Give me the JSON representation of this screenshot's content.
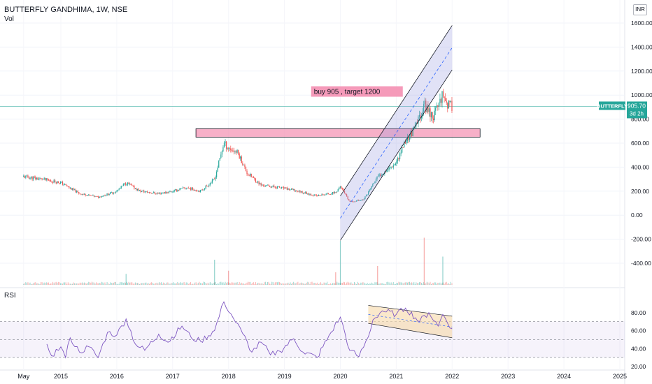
{
  "header": {
    "symbol_title": "BUTTERFLY GANDHIMA, 1W, NSE",
    "volume_label": "Vol",
    "currency": "INR"
  },
  "price_tag": {
    "symbol": "BUTTERFLY",
    "price": "905.70",
    "countdown": "3d 2h"
  },
  "annotation_text": "buy 905 , target 1200",
  "rsi_label": "RSI",
  "colors": {
    "up": "#26a69a",
    "down": "#ef5350",
    "rsi_line": "#7e57c2",
    "channel": "#9598e0",
    "annotation_bg": "#f48fb1",
    "tag_bg": "#26a69a",
    "rsi_channel": "#f7d9a8"
  },
  "chart_data": [
    {
      "type": "candlestick",
      "title": "BUTTERFLY GANDHIMA, 1W, NSE",
      "x_ticks": [
        "May",
        "2015",
        "2016",
        "2017",
        "2018",
        "2019",
        "2020",
        "2021",
        "2022",
        "2023",
        "2024",
        "2025"
      ],
      "y_ticks": [
        "1600.00",
        "1400.00",
        "1200.00",
        "1000.00",
        "800.00",
        "600.00",
        "400.00",
        "200.00",
        "0.00",
        "-200.00",
        "-400.00"
      ],
      "ylim": [
        -400,
        1600
      ],
      "last_price": 905.7,
      "price_path": [
        [
          "2014-05",
          320
        ],
        [
          "2014-09",
          300
        ],
        [
          "2015-01",
          270
        ],
        [
          "2015-05",
          180
        ],
        [
          "2015-09",
          150
        ],
        [
          "2016-01",
          200
        ],
        [
          "2016-03",
          270
        ],
        [
          "2016-06",
          200
        ],
        [
          "2016-10",
          180
        ],
        [
          "2017-01",
          200
        ],
        [
          "2017-04",
          230
        ],
        [
          "2017-07",
          200
        ],
        [
          "2017-10",
          300
        ],
        [
          "2017-12",
          600
        ],
        [
          "2018-01",
          560
        ],
        [
          "2018-03",
          520
        ],
        [
          "2018-05",
          350
        ],
        [
          "2018-08",
          250
        ],
        [
          "2018-12",
          230
        ],
        [
          "2019-04",
          200
        ],
        [
          "2019-08",
          160
        ],
        [
          "2019-12",
          190
        ],
        [
          "2020-01",
          240
        ],
        [
          "2020-03",
          110
        ],
        [
          "2020-06",
          130
        ],
        [
          "2020-09",
          320
        ],
        [
          "2021-01",
          440
        ],
        [
          "2021-03",
          620
        ],
        [
          "2021-05",
          720
        ],
        [
          "2021-07",
          920
        ],
        [
          "2021-09",
          820
        ],
        [
          "2021-11",
          1020
        ],
        [
          "2021-12",
          920
        ],
        [
          "2022-01",
          905.7
        ]
      ],
      "volume_spikes": [
        [
          "2017-10",
          0.8
        ],
        [
          "2018-01",
          0.45
        ],
        [
          "2020-01",
          1.4
        ],
        [
          "2021-07",
          1.5
        ],
        [
          "2021-11",
          0.9
        ],
        [
          "2020-09",
          0.6
        ],
        [
          "2016-03",
          0.35
        ],
        [
          "2019-12",
          0.4
        ]
      ],
      "channel": {
        "from": [
          "2020-01",
          -210
        ],
        "to": [
          "2022-01",
          1210
        ],
        "width": 370
      },
      "resistance_zone": {
        "from": "2017-06",
        "to": "2022-07",
        "low": 650,
        "high": 720
      },
      "annotation": {
        "text": "buy 905 , target 1200",
        "date": "2020-09",
        "price": 1030
      }
    },
    {
      "type": "line",
      "title": "RSI",
      "y_ticks": [
        "80.00",
        "60.00",
        "40.00",
        "20.00"
      ],
      "ylim": [
        20,
        100
      ],
      "levels": [
        70,
        50,
        30
      ],
      "channel": {
        "from": [
          "2020-07",
          88
        ],
        "to": [
          "2022-01",
          76
        ],
        "lower_from": 68,
        "lower_to": 52
      },
      "values": [
        [
          "2014-10",
          45
        ],
        [
          "2014-11",
          32
        ],
        [
          "2015-01",
          42
        ],
        [
          "2015-02",
          30
        ],
        [
          "2015-03",
          52
        ],
        [
          "2015-05",
          36
        ],
        [
          "2015-07",
          42
        ],
        [
          "2015-09",
          30
        ],
        [
          "2015-11",
          58
        ],
        [
          "2016-01",
          55
        ],
        [
          "2016-03",
          73
        ],
        [
          "2016-05",
          45
        ],
        [
          "2016-07",
          38
        ],
        [
          "2016-10",
          56
        ],
        [
          "2016-12",
          47
        ],
        [
          "2017-03",
          65
        ],
        [
          "2017-05",
          52
        ],
        [
          "2017-07",
          48
        ],
        [
          "2017-10",
          60
        ],
        [
          "2017-12",
          92
        ],
        [
          "2018-02",
          74
        ],
        [
          "2018-04",
          57
        ],
        [
          "2018-06",
          36
        ],
        [
          "2018-08",
          47
        ],
        [
          "2018-10",
          33
        ],
        [
          "2018-12",
          37
        ],
        [
          "2019-03",
          51
        ],
        [
          "2019-05",
          36
        ],
        [
          "2019-08",
          30
        ],
        [
          "2019-11",
          58
        ],
        [
          "2020-01",
          75
        ],
        [
          "2020-03",
          38
        ],
        [
          "2020-05",
          31
        ],
        [
          "2020-07",
          53
        ],
        [
          "2020-08",
          72
        ],
        [
          "2020-10",
          82
        ],
        [
          "2021-01",
          78
        ],
        [
          "2021-03",
          85
        ],
        [
          "2021-06",
          70
        ],
        [
          "2021-08",
          80
        ],
        [
          "2021-10",
          65
        ],
        [
          "2021-11",
          78
        ],
        [
          "2022-01",
          62
        ]
      ]
    }
  ]
}
